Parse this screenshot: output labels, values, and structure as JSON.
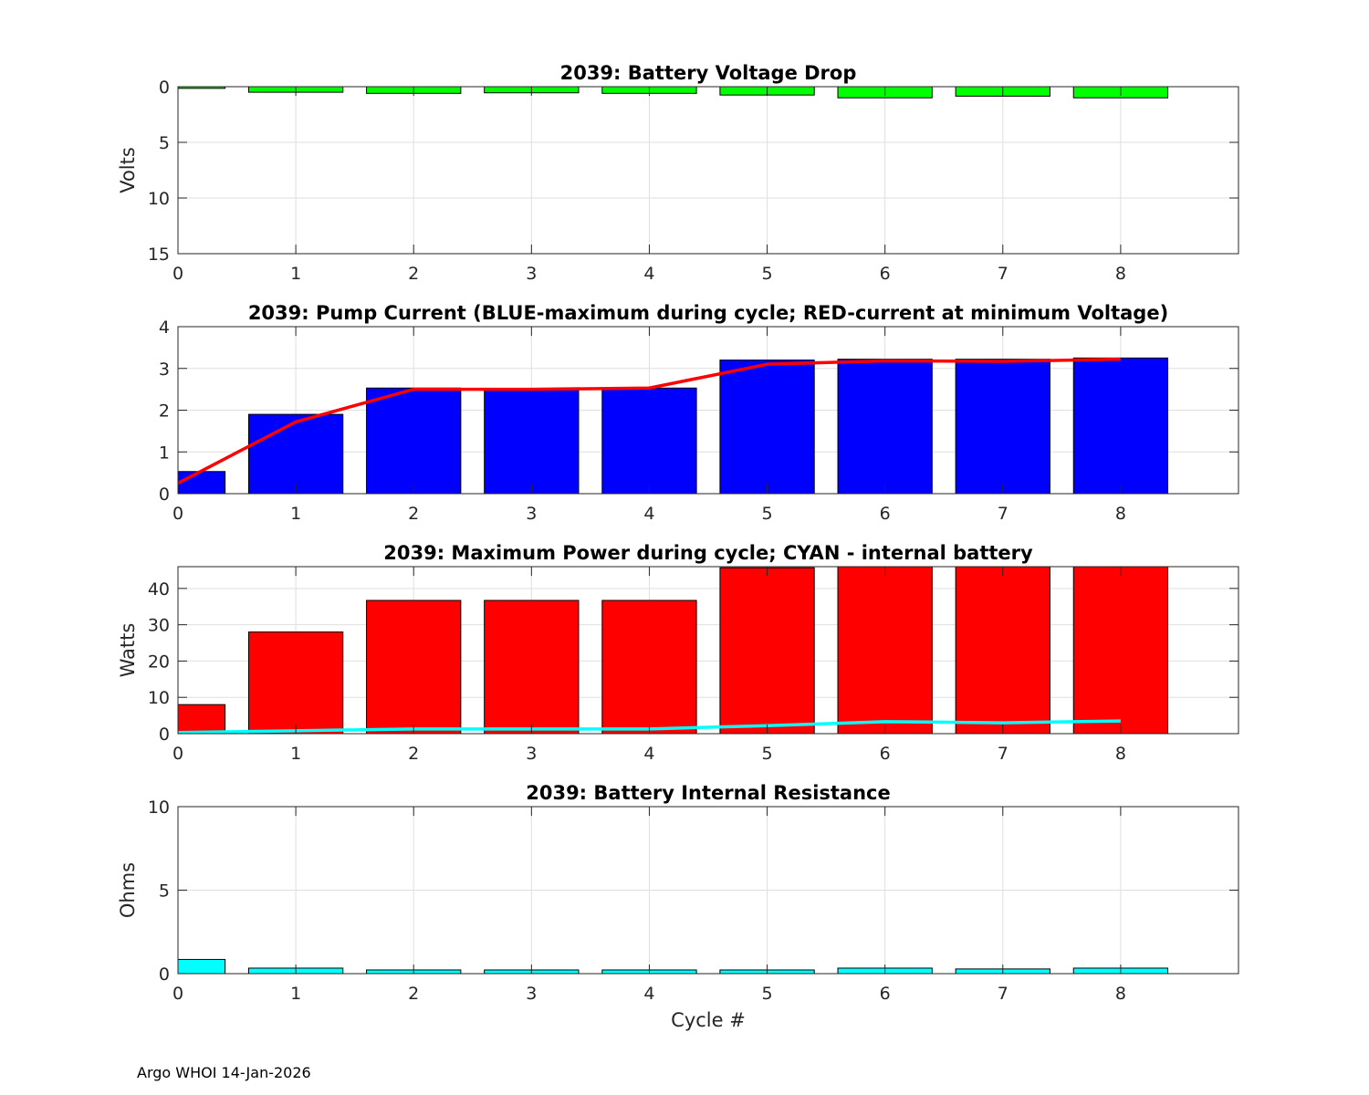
{
  "footer": "Argo WHOI 14-Jan-2026",
  "x_tick_labels": [
    "0",
    "1",
    "2",
    "3",
    "4",
    "5",
    "6",
    "7",
    "8"
  ],
  "chart_data": [
    {
      "id": "voltage",
      "type": "bar",
      "title": "2039: Battery Voltage Drop",
      "xlabel": "",
      "ylabel": "Volts",
      "ylim": [
        0,
        15
      ],
      "y_reversed": true,
      "yticks": [
        0,
        5,
        10,
        15
      ],
      "xlim": [
        0,
        9
      ],
      "grid": true,
      "categories": [
        0,
        1,
        2,
        3,
        4,
        5,
        6,
        7,
        8
      ],
      "series": [
        {
          "name": "Battery Voltage Drop",
          "kind": "bar",
          "color": "#00ff00",
          "values": [
            0.15,
            0.5,
            0.6,
            0.55,
            0.6,
            0.75,
            1.0,
            0.85,
            1.0
          ]
        }
      ]
    },
    {
      "id": "current",
      "type": "bar",
      "title": "2039: Pump Current (BLUE-maximum during cycle; RED-current at minimum Voltage)",
      "xlabel": "",
      "ylabel": "",
      "ylim": [
        0,
        4
      ],
      "yticks": [
        0,
        1,
        2,
        3,
        4
      ],
      "xlim": [
        0,
        9
      ],
      "grid": true,
      "categories": [
        0,
        1,
        2,
        3,
        4,
        5,
        6,
        7,
        8
      ],
      "series": [
        {
          "name": "maximum during cycle",
          "kind": "bar",
          "color": "#0000ff",
          "values": [
            0.53,
            1.9,
            2.53,
            2.5,
            2.53,
            3.2,
            3.22,
            3.22,
            3.25
          ]
        },
        {
          "name": "current at minimum Voltage",
          "kind": "line",
          "color": "#ff0000",
          "values": [
            0.25,
            1.72,
            2.5,
            2.5,
            2.53,
            3.1,
            3.18,
            3.17,
            3.22
          ]
        }
      ]
    },
    {
      "id": "power",
      "type": "bar",
      "title": "2039: Maximum Power during cycle; CYAN - internal battery",
      "xlabel": "",
      "ylabel": "Watts",
      "ylim": [
        0,
        46
      ],
      "yticks": [
        0,
        10,
        20,
        30,
        40
      ],
      "xlim": [
        0,
        9
      ],
      "grid": true,
      "categories": [
        0,
        1,
        2,
        3,
        4,
        5,
        6,
        7,
        8
      ],
      "series": [
        {
          "name": "Maximum Power",
          "kind": "bar",
          "color": "#ff0000",
          "values": [
            8,
            28,
            36.7,
            36.7,
            36.7,
            45.7,
            46,
            46,
            46
          ]
        },
        {
          "name": "internal battery",
          "kind": "line",
          "color": "#00ffff",
          "values": [
            0.3,
            0.8,
            1.3,
            1.3,
            1.3,
            2.2,
            3.3,
            3.0,
            3.5
          ]
        }
      ]
    },
    {
      "id": "resistance",
      "type": "bar",
      "title": "2039: Battery Internal Resistance",
      "xlabel": "Cycle #",
      "ylabel": "Ohms",
      "ylim": [
        0,
        10
      ],
      "yticks": [
        0,
        5,
        10
      ],
      "xlim": [
        0,
        9
      ],
      "grid": true,
      "categories": [
        0,
        1,
        2,
        3,
        4,
        5,
        6,
        7,
        8
      ],
      "series": [
        {
          "name": "Internal Resistance",
          "kind": "bar",
          "color": "#00ffff",
          "values": [
            0.85,
            0.33,
            0.22,
            0.22,
            0.22,
            0.22,
            0.33,
            0.28,
            0.33
          ]
        }
      ]
    }
  ]
}
